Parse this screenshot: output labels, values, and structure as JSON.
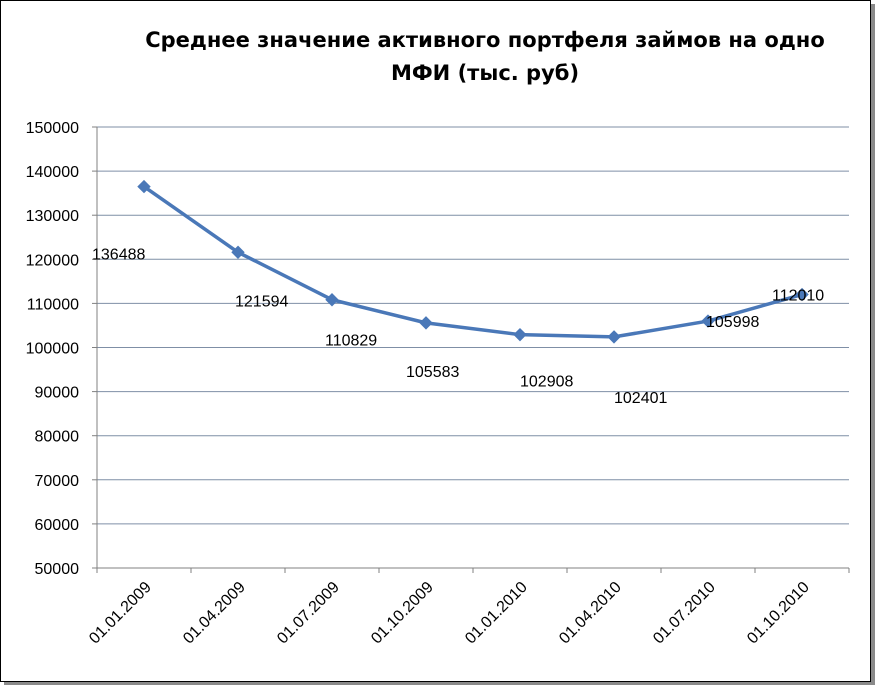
{
  "chart_data": {
    "type": "line",
    "title": "Среднее значение активного портфеля займов на одно МФИ (тыс. руб)",
    "categories": [
      "01.01.2009",
      "01.04.2009",
      "01.07.2009",
      "01.10.2009",
      "01.01.2010",
      "01.04.2010",
      "01.07.2010",
      "01.10.2010"
    ],
    "series": [
      {
        "values": [
          136488,
          121594,
          110829,
          105583,
          102908,
          102401,
          105998,
          112010
        ]
      }
    ],
    "data_labels": [
      "136488",
      "121594",
      "110829",
      "105583",
      "102908",
      "102401",
      "105998",
      "112010"
    ],
    "ylim": [
      50000,
      150000
    ],
    "yticks": [
      50000,
      60000,
      70000,
      80000,
      90000,
      100000,
      110000,
      120000,
      130000,
      140000,
      150000
    ],
    "ytick_labels": [
      "50000",
      "60000",
      "70000",
      "80000",
      "90000",
      "100000",
      "110000",
      "120000",
      "130000",
      "140000",
      "150000"
    ],
    "grid": true,
    "legend": "none",
    "colors": {
      "line": "#4a78b8",
      "grid": "#7f8fa6",
      "axis": "#808080"
    }
  }
}
